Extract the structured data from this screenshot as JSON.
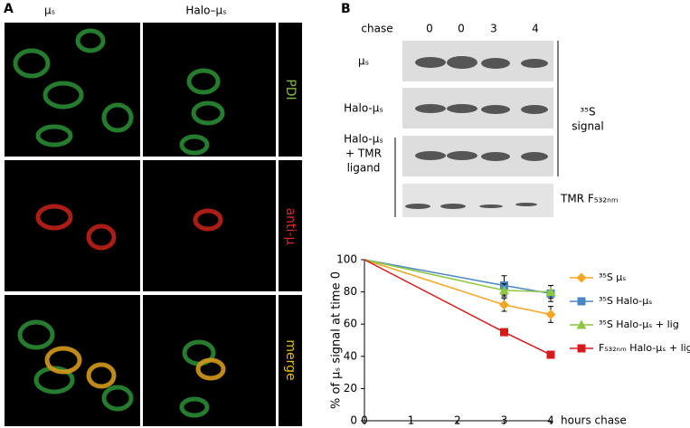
{
  "panel_a": {
    "label": "A",
    "columns": [
      "μₛ",
      "Halo–μₛ"
    ],
    "row_labels": [
      "PDI",
      "anti-μ",
      "merge"
    ]
  },
  "panel_b": {
    "label": "B",
    "gel": {
      "chase_label": "chase",
      "lanes": [
        0,
        0,
        3,
        4
      ],
      "row_labels": [
        [
          "μₛ"
        ],
        [
          "Halo-μₛ"
        ],
        [
          "Halo-μₛ",
          "+ TMR",
          "ligand"
        ]
      ],
      "signal_label": [
        "³⁵S",
        "signal"
      ],
      "tmr_label": "TMR F₅₃₂ₙₘ"
    }
  },
  "chart_data": {
    "type": "line",
    "y_label": "% of μₛ signal at time 0",
    "x_label": "hours chase",
    "xlim": [
      0,
      4
    ],
    "ylim": [
      0,
      100
    ],
    "xticks": [
      0,
      1,
      2,
      3,
      4
    ],
    "yticks": [
      0,
      20,
      40,
      60,
      80,
      100
    ],
    "x": [
      0,
      3,
      4
    ],
    "series": [
      {
        "name": "³⁵S μₛ",
        "color": "#f5a623",
        "marker": "diamond",
        "values": [
          100,
          72,
          66
        ],
        "errors": [
          null,
          4,
          5
        ]
      },
      {
        "name": "³⁵S Halo-μₛ",
        "color": "#4a86c5",
        "marker": "square",
        "values": [
          100,
          84,
          79
        ],
        "errors": [
          null,
          6,
          5
        ]
      },
      {
        "name": "³⁵S Halo-μₛ + lig",
        "color": "#8dc63f",
        "marker": "triangle",
        "values": [
          100,
          81,
          80
        ],
        "errors": [
          null,
          4,
          4
        ]
      },
      {
        "name": "F₅₃₂ₙₘ Halo-μₛ + lig",
        "color": "#d7191c",
        "marker": "square",
        "values": [
          100,
          55,
          41
        ],
        "errors": [
          null,
          1,
          1
        ]
      }
    ]
  }
}
